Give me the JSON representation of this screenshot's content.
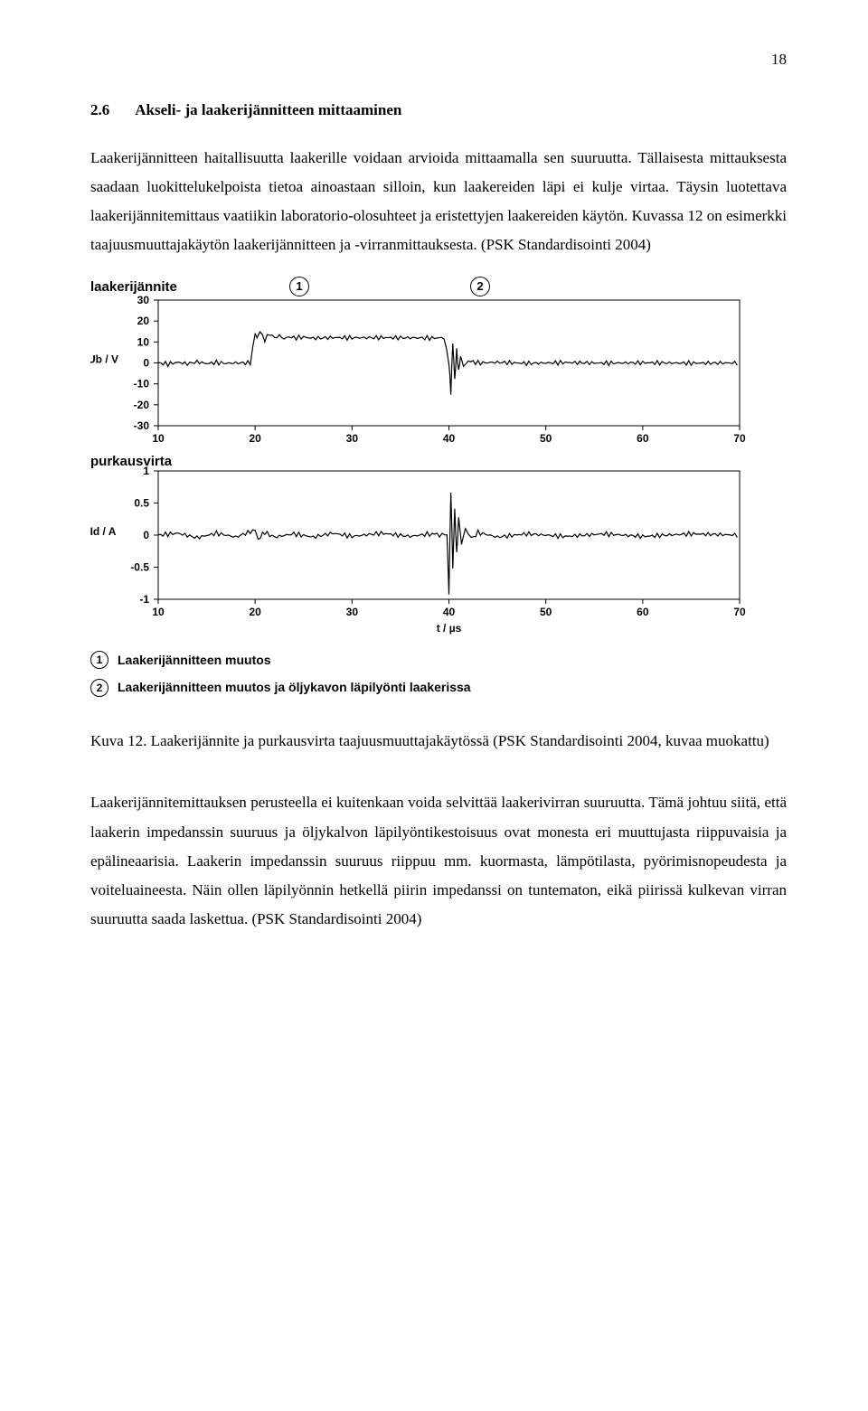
{
  "page_number": "18",
  "heading_number": "2.6",
  "heading_text": "Akseli- ja laakerijännitteen mittaaminen",
  "paragraph1": "Laakerijännitteen haitallisuutta laakerille voidaan arvioida mittaamalla sen suuruutta. Tällaisesta mittauksesta saadaan luokittelukelpoista tietoa ainoastaan silloin, kun laakereiden läpi ei kulje virtaa. Täysin luotettava laakerijännitemittaus vaatiikin laboratorio-olosuhteet ja eristettyjen laakereiden käytön. Kuvassa 12 on esimerkki taajuusmuuttajakäytön laakerijännitteen ja -virranmittauksesta. (PSK Standardisointi 2004)",
  "figure": {
    "chart1": {
      "title": "laakerijännite",
      "ylabel": "Ub / V",
      "ylim": [
        -30,
        30
      ],
      "yticks": [
        -30,
        -20,
        -10,
        0,
        10,
        20,
        30
      ],
      "xlim": [
        10,
        70
      ],
      "xticks": [
        10,
        20,
        30,
        40,
        50,
        60,
        70
      ],
      "marker1": {
        "label": "1",
        "x": 20
      },
      "marker2": {
        "label": "2",
        "x": 40
      },
      "line_color": "#000000",
      "bg_color": "#ffffff",
      "grid_color": "#000000",
      "line_width": 1.2,
      "data_outline": [
        [
          10,
          0
        ],
        [
          11,
          -0.5
        ],
        [
          12,
          0.3
        ],
        [
          13,
          -0.4
        ],
        [
          14,
          0.5
        ],
        [
          15,
          -0.3
        ],
        [
          16,
          0.2
        ],
        [
          17,
          -0.2
        ],
        [
          18,
          0
        ],
        [
          19.5,
          0
        ],
        [
          20,
          14
        ],
        [
          20.2,
          12
        ],
        [
          20.5,
          15
        ],
        [
          21,
          11
        ],
        [
          21.5,
          14
        ],
        [
          22,
          12
        ],
        [
          22.5,
          13
        ],
        [
          23,
          11.5
        ],
        [
          23.5,
          12.5
        ],
        [
          24,
          12
        ],
        [
          25,
          12.3
        ],
        [
          26,
          11.8
        ],
        [
          28,
          12.1
        ],
        [
          30,
          12
        ],
        [
          33,
          12.1
        ],
        [
          36,
          12
        ],
        [
          38,
          11.9
        ],
        [
          39.5,
          12
        ],
        [
          40,
          0
        ],
        [
          40.2,
          -14
        ],
        [
          40.4,
          10
        ],
        [
          40.6,
          -8
        ],
        [
          40.8,
          6
        ],
        [
          41,
          -4
        ],
        [
          41.2,
          3
        ],
        [
          41.5,
          -2
        ],
        [
          42,
          1
        ],
        [
          43,
          0
        ],
        [
          45,
          0.3
        ],
        [
          48,
          -0.2
        ],
        [
          52,
          0.2
        ],
        [
          56,
          -0.1
        ],
        [
          60,
          0.1
        ],
        [
          65,
          -0.1
        ],
        [
          70,
          0
        ]
      ]
    },
    "chart2": {
      "title": "purkausvirta",
      "ylabel": "Id / A",
      "ylim": [
        -1,
        1
      ],
      "yticks": [
        -1,
        -0.5,
        0,
        0.5,
        1
      ],
      "xlim": [
        10,
        70
      ],
      "xticks": [
        10,
        20,
        30,
        40,
        50,
        60,
        70
      ],
      "xlabel": "t / µs",
      "line_color": "#000000",
      "bg_color": "#ffffff",
      "line_width": 1.2,
      "data_outline": [
        [
          10,
          0
        ],
        [
          12,
          0.03
        ],
        [
          14,
          -0.04
        ],
        [
          16,
          0.03
        ],
        [
          18,
          -0.03
        ],
        [
          20,
          0.08
        ],
        [
          20.3,
          -0.06
        ],
        [
          21,
          0.04
        ],
        [
          22,
          -0.03
        ],
        [
          24,
          0.02
        ],
        [
          26,
          -0.03
        ],
        [
          28,
          0.03
        ],
        [
          30,
          -0.02
        ],
        [
          33,
          0.03
        ],
        [
          36,
          -0.02
        ],
        [
          38,
          0.02
        ],
        [
          39.8,
          0
        ],
        [
          40,
          -0.9
        ],
        [
          40.2,
          0.7
        ],
        [
          40.4,
          -0.5
        ],
        [
          40.6,
          0.4
        ],
        [
          40.8,
          -0.3
        ],
        [
          41,
          0.25
        ],
        [
          41.3,
          -0.15
        ],
        [
          41.7,
          0.1
        ],
        [
          42.3,
          -0.06
        ],
        [
          43,
          0.04
        ],
        [
          45,
          -0.03
        ],
        [
          48,
          0.02
        ],
        [
          52,
          -0.02
        ],
        [
          56,
          0.02
        ],
        [
          60,
          -0.02
        ],
        [
          65,
          0.02
        ],
        [
          70,
          0
        ]
      ]
    },
    "legend": [
      {
        "num": "1",
        "text": "Laakerijännitteen muutos"
      },
      {
        "num": "2",
        "text": "Laakerijännitteen muutos ja öljykavon läpilyönti laakerissa"
      }
    ]
  },
  "caption_label": "Kuva 12.",
  "caption_text": " Laakerijännite ja purkausvirta taajuusmuuttajakäytössä (PSK Standardisointi 2004, kuvaa muokattu)",
  "paragraph2": "Laakerijännitemittauksen perusteella ei kuitenkaan voida selvittää laakerivirran suuruutta. Tämä johtuu siitä, että laakerin impedanssin suuruus ja öljykalvon läpilyöntikestoisuus ovat monesta eri muuttujasta riippuvaisia ja epälineaarisia. Laakerin impedanssin suuruus riippuu mm. kuormasta, lämpötilasta, pyörimisnopeudesta ja voiteluaineesta. Näin ollen läpilyönnin hetkellä piirin impedanssi on tuntematon, eikä piirissä kulkevan virran suuruutta saada laskettua. (PSK Standardisointi 2004)"
}
